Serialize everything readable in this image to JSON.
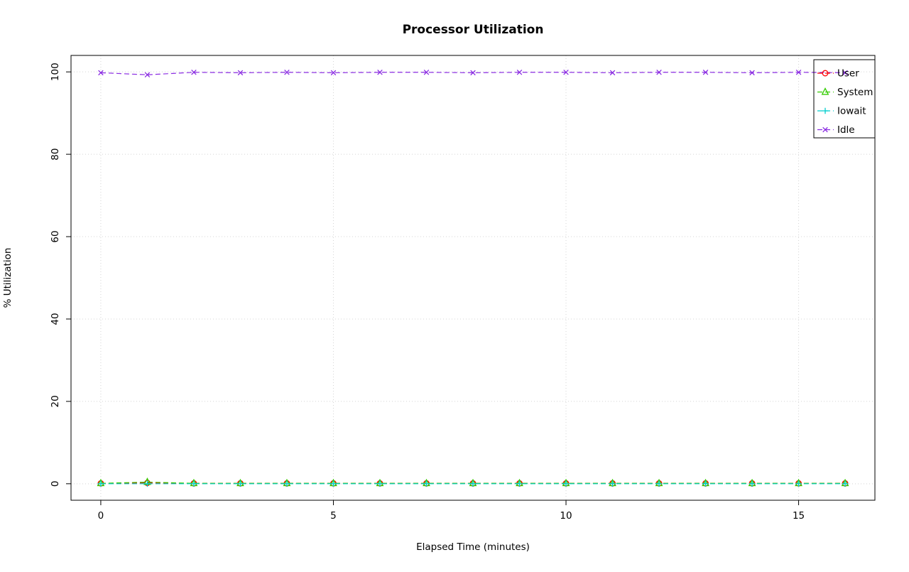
{
  "page": {
    "background": "#ffffff"
  },
  "chart_data": {
    "type": "line",
    "title": "Processor Utilization",
    "xlabel": "Elapsed Time (minutes)",
    "ylabel": "% Utilization",
    "xlim": [
      0,
      16
    ],
    "ylim": [
      0,
      100
    ],
    "xticks": [
      0,
      5,
      10,
      15
    ],
    "yticks": [
      0,
      20,
      40,
      60,
      80,
      100
    ],
    "grid": true,
    "grid_color": "#d4d4d4",
    "box_color": "#000000",
    "legend_position": "topright",
    "x": [
      0,
      1,
      2,
      3,
      4,
      5,
      6,
      7,
      8,
      9,
      10,
      11,
      12,
      13,
      14,
      15,
      16
    ],
    "series": [
      {
        "name": "User",
        "color": "#ff0000",
        "marker": "circle",
        "linestyle": "dashed",
        "values": [
          0.1,
          0.2,
          0.1,
          0.1,
          0.1,
          0.1,
          0.1,
          0.1,
          0.1,
          0.1,
          0.1,
          0.1,
          0.1,
          0.1,
          0.1,
          0.1,
          0.1
        ]
      },
      {
        "name": "System",
        "color": "#33cc00",
        "marker": "triangle",
        "linestyle": "dashed",
        "values": [
          0.1,
          0.4,
          0.1,
          0.1,
          0.1,
          0.1,
          0.1,
          0.1,
          0.1,
          0.1,
          0.1,
          0.1,
          0.1,
          0.1,
          0.1,
          0.1,
          0.1
        ]
      },
      {
        "name": "Iowait",
        "color": "#00cdcd",
        "marker": "plus",
        "linestyle": "dashed",
        "values": [
          0,
          0,
          0,
          0,
          0,
          0,
          0,
          0,
          0,
          0,
          0,
          0,
          0,
          0,
          0,
          0,
          0
        ]
      },
      {
        "name": "Idle",
        "color": "#8a2be2",
        "marker": "x",
        "linestyle": "dashed",
        "values": [
          99.8,
          99.3,
          99.9,
          99.8,
          99.9,
          99.8,
          99.9,
          99.9,
          99.8,
          99.9,
          99.9,
          99.8,
          99.9,
          99.9,
          99.8,
          99.9,
          99.8
        ]
      }
    ]
  }
}
